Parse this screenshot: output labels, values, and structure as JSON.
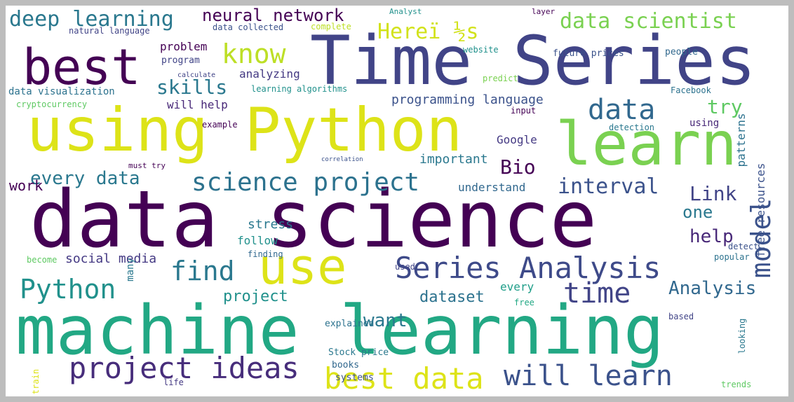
{
  "words": [
    {
      "text": "data science",
      "color": "#440154"
    },
    {
      "text": "machine learning",
      "color": "#22a884"
    },
    {
      "text": "Time Series",
      "color": "#414487"
    },
    {
      "text": "using Python",
      "color": "#dde318"
    },
    {
      "text": "learn",
      "color": "#7ad151"
    },
    {
      "text": "best",
      "color": "#440154"
    },
    {
      "text": "use",
      "color": "#dde318"
    },
    {
      "text": "Series Analysis",
      "color": "#3e4a89"
    },
    {
      "text": "project ideas",
      "color": "#472d7b"
    },
    {
      "text": "will learn",
      "color": "#3b528b"
    },
    {
      "text": "best data",
      "color": "#dde318"
    },
    {
      "text": "science project",
      "color": "#2c728e"
    },
    {
      "text": "data",
      "color": "#31688e"
    },
    {
      "text": "model",
      "color": "#3b528b"
    },
    {
      "text": "interval",
      "color": "#3b528b"
    },
    {
      "text": "time",
      "color": "#414487"
    },
    {
      "text": "find",
      "color": "#2a788e"
    },
    {
      "text": "Python",
      "color": "#21918c"
    },
    {
      "text": "know",
      "color": "#bddf26"
    },
    {
      "text": "Hereï ½s",
      "color": "#d2e21b"
    },
    {
      "text": "data scientist",
      "color": "#7ad151"
    },
    {
      "text": "deep learning",
      "color": "#2a788e"
    },
    {
      "text": "neural network",
      "color": "#440154"
    },
    {
      "text": "skills",
      "color": "#2a788e"
    },
    {
      "text": "try",
      "color": "#5ec962"
    },
    {
      "text": "Link",
      "color": "#414487"
    },
    {
      "text": "Analysis",
      "color": "#31688e"
    },
    {
      "text": "every data",
      "color": "#2a788e"
    },
    {
      "text": "Bio",
      "color": "#440154"
    },
    {
      "text": "work",
      "color": "#440154"
    },
    {
      "text": "help",
      "color": "#482878"
    },
    {
      "text": "one",
      "color": "#2a788e"
    },
    {
      "text": "want",
      "color": "#2a788e"
    },
    {
      "text": "dataset",
      "color": "#2c728e"
    },
    {
      "text": "project",
      "color": "#21918c"
    },
    {
      "text": "social media",
      "color": "#443983"
    },
    {
      "text": "programming language",
      "color": "#3b528b"
    },
    {
      "text": "data visualization",
      "color": "#2c728e"
    },
    {
      "text": "analyzing",
      "color": "#443983"
    },
    {
      "text": "will help",
      "color": "#482878"
    },
    {
      "text": "important",
      "color": "#2a788e"
    },
    {
      "text": "understand",
      "color": "#31688e"
    },
    {
      "text": "stress",
      "color": "#2a788e"
    },
    {
      "text": "follow",
      "color": "#21918c"
    },
    {
      "text": "every",
      "color": "#1f9e89"
    },
    {
      "text": "free resources",
      "color": "#3b528b"
    },
    {
      "text": "patterns",
      "color": "#2c728e"
    },
    {
      "text": "Google",
      "color": "#443983"
    },
    {
      "text": "problem",
      "color": "#440154"
    },
    {
      "text": "program",
      "color": "#414487"
    },
    {
      "text": "Stock price",
      "color": "#2a788e"
    },
    {
      "text": "books",
      "color": "#31688e"
    },
    {
      "text": "systems",
      "color": "#3b528b"
    },
    {
      "text": "explained",
      "color": "#2c728e"
    },
    {
      "text": "natural language",
      "color": "#414487"
    },
    {
      "text": "cryptocurrency",
      "color": "#5ec962"
    },
    {
      "text": "future prices",
      "color": "#3b528b"
    },
    {
      "text": "people",
      "color": "#31688e"
    },
    {
      "text": "Facebook",
      "color": "#2c728e"
    },
    {
      "text": "website",
      "color": "#21918c"
    },
    {
      "text": "layer",
      "color": "#440154"
    },
    {
      "text": "Analyst",
      "color": "#21918c"
    },
    {
      "text": "data collected",
      "color": "#3b528b"
    },
    {
      "text": "complete",
      "color": "#bddf26"
    },
    {
      "text": "predict",
      "color": "#7ad151"
    },
    {
      "text": "input",
      "color": "#440154"
    },
    {
      "text": "detection",
      "color": "#2a788e"
    },
    {
      "text": "using",
      "color": "#482878"
    },
    {
      "text": "example",
      "color": "#440154"
    },
    {
      "text": "finding",
      "color": "#31688e"
    },
    {
      "text": "used",
      "color": "#414487"
    },
    {
      "text": "popular",
      "color": "#2c728e"
    },
    {
      "text": "detect",
      "color": "#3b528b"
    },
    {
      "text": "become",
      "color": "#5ec962"
    },
    {
      "text": "looking",
      "color": "#2a788e"
    },
    {
      "text": "based",
      "color": "#414487"
    },
    {
      "text": "free",
      "color": "#22a884"
    },
    {
      "text": "life",
      "color": "#443983"
    },
    {
      "text": "trends",
      "color": "#5ec962"
    },
    {
      "text": "train",
      "color": "#dde318"
    },
    {
      "text": "learning algorithms",
      "color": "#21918c"
    },
    {
      "text": "must try",
      "color": "#440154"
    },
    {
      "text": "calculate",
      "color": "#414487"
    },
    {
      "text": "correlation",
      "color": "#3b528b"
    },
    {
      "text": "many",
      "color": "#2a788e"
    }
  ]
}
